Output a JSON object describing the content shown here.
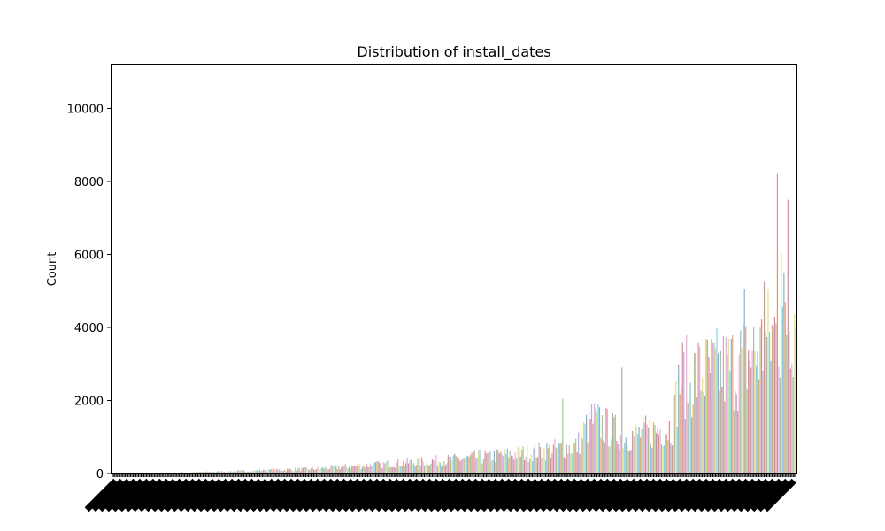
{
  "chart_data": {
    "type": "bar",
    "title": "Distribution of install_dates",
    "xlabel": "",
    "ylabel": "Count",
    "ylim": [
      0,
      11200
    ],
    "yticks": [
      0,
      2000,
      4000,
      6000,
      8000,
      10000
    ],
    "grid": false,
    "legend": "none",
    "bar_count": 520,
    "bar_colors": [
      "#7fb2d5",
      "#f6a36d",
      "#8fd18f",
      "#e8858b",
      "#c1a9da",
      "#c79b8f",
      "#f2a8d9",
      "#b3b3b3",
      "#e5e07a",
      "#7fd4e0"
    ],
    "trend_anchors": [
      {
        "position": 0.0,
        "value": 10
      },
      {
        "position": 0.1,
        "value": 25
      },
      {
        "position": 0.2,
        "value": 70
      },
      {
        "position": 0.3,
        "value": 130
      },
      {
        "position": 0.4,
        "value": 260
      },
      {
        "position": 0.5,
        "value": 380
      },
      {
        "position": 0.6,
        "value": 550
      },
      {
        "position": 0.68,
        "value": 750
      },
      {
        "position": 0.7,
        "value": 1500
      },
      {
        "position": 0.75,
        "value": 1000
      },
      {
        "position": 0.8,
        "value": 1200
      },
      {
        "position": 0.82,
        "value": 1300
      },
      {
        "position": 0.83,
        "value": 2600
      },
      {
        "position": 0.9,
        "value": 2850
      },
      {
        "position": 0.95,
        "value": 3400
      },
      {
        "position": 1.0,
        "value": 4500
      }
    ],
    "peaks": [
      {
        "position": 0.6586,
        "value": 2050
      },
      {
        "position": 0.7452,
        "value": 2900
      },
      {
        "position": 0.9249,
        "value": 5050
      },
      {
        "position": 0.9538,
        "value": 5250
      },
      {
        "position": 0.9737,
        "value": 8200
      },
      {
        "position": 0.9885,
        "value": 7500
      },
      {
        "position": 0.9795,
        "value": 6050
      }
    ]
  }
}
